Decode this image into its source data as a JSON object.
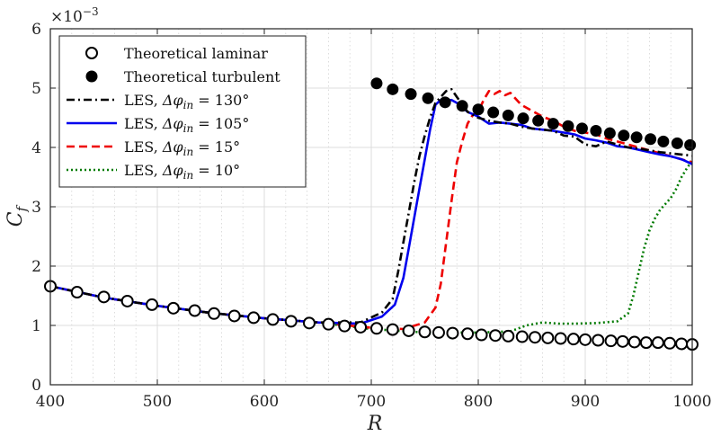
{
  "chart_data": {
    "type": "line",
    "xlabel": "R",
    "ylabel_main": "C",
    "ylabel_sub": "f",
    "xlim": [
      400,
      1000
    ],
    "ylim": [
      0,
      6
    ],
    "y_multiplier": "×10",
    "y_multiplier_exp": "−3",
    "x_ticks": [
      "400",
      "500",
      "600",
      "700",
      "800",
      "900",
      "1000"
    ],
    "y_ticks": [
      "0",
      "1",
      "2",
      "3",
      "4",
      "5",
      "6"
    ],
    "grid": true,
    "minor_grid": true,
    "legend_position": "top-left",
    "series": [
      {
        "name": "Theoretical laminar",
        "style": "open-circle",
        "color": "#000000",
        "x": [
          400,
          425,
          450,
          472,
          495,
          515,
          535,
          553,
          572,
          590,
          608,
          625,
          642,
          660,
          675,
          690,
          705,
          720,
          735,
          750,
          763,
          776,
          790,
          803,
          816,
          828,
          841,
          853,
          865,
          877,
          889,
          900,
          912,
          924,
          935,
          946,
          957,
          968,
          979,
          990,
          1000
        ],
        "y": [
          1.66,
          1.56,
          1.48,
          1.41,
          1.35,
          1.29,
          1.25,
          1.2,
          1.16,
          1.13,
          1.1,
          1.07,
          1.04,
          1.02,
          0.99,
          0.97,
          0.95,
          0.93,
          0.91,
          0.89,
          0.88,
          0.87,
          0.86,
          0.84,
          0.83,
          0.82,
          0.81,
          0.8,
          0.79,
          0.78,
          0.77,
          0.76,
          0.75,
          0.74,
          0.73,
          0.72,
          0.71,
          0.71,
          0.7,
          0.69,
          0.68
        ]
      },
      {
        "name": "Theoretical turbulent",
        "style": "filled-circle",
        "color": "#000000",
        "x": [
          705,
          720,
          737,
          753,
          769,
          785,
          800,
          814,
          828,
          842,
          856,
          870,
          884,
          897,
          910,
          923,
          936,
          948,
          961,
          973,
          986,
          998
        ],
        "y": [
          5.08,
          4.98,
          4.9,
          4.83,
          4.76,
          4.7,
          4.64,
          4.59,
          4.54,
          4.49,
          4.45,
          4.4,
          4.36,
          4.32,
          4.28,
          4.24,
          4.2,
          4.17,
          4.14,
          4.1,
          4.07,
          4.04
        ]
      },
      {
        "name": "LES, Δφin = 130°",
        "legend_prefix": "LES, ",
        "legend_math": "Δφ",
        "legend_sub": "in",
        "legend_suffix": " = 130°",
        "style": "dashdot",
        "color": "#000000",
        "x": [
          400,
          450,
          500,
          550,
          600,
          650,
          690,
          710,
          720,
          725,
          730,
          735,
          740,
          745,
          750,
          755,
          760,
          765,
          770,
          775,
          780,
          790,
          800,
          810,
          820,
          830,
          840,
          850,
          860,
          870,
          880,
          890,
          900,
          910,
          920,
          930,
          940,
          950,
          960,
          970,
          980,
          990,
          1000
        ],
        "y": [
          1.66,
          1.47,
          1.33,
          1.21,
          1.12,
          1.05,
          1.05,
          1.22,
          1.45,
          1.9,
          2.4,
          2.9,
          3.4,
          3.85,
          4.2,
          4.5,
          4.75,
          4.85,
          4.95,
          4.98,
          4.85,
          4.6,
          4.5,
          4.45,
          4.42,
          4.4,
          4.35,
          4.32,
          4.3,
          4.28,
          4.2,
          4.18,
          4.05,
          4.02,
          4.1,
          4.05,
          4.0,
          3.98,
          3.95,
          3.92,
          3.9,
          3.88,
          3.86
        ]
      },
      {
        "name": "LES, Δφin = 105°",
        "legend_prefix": "LES, ",
        "legend_math": "Δφ",
        "legend_sub": "in",
        "legend_suffix": " = 105°",
        "style": "solid",
        "color": "#0000ee",
        "x": [
          400,
          450,
          500,
          550,
          600,
          650,
          690,
          710,
          722,
          730,
          735,
          740,
          745,
          750,
          755,
          760,
          765,
          770,
          775,
          780,
          790,
          800,
          810,
          820,
          830,
          840,
          850,
          860,
          870,
          880,
          890,
          900,
          910,
          920,
          930,
          940,
          950,
          960,
          970,
          980,
          990,
          1000
        ],
        "y": [
          1.66,
          1.47,
          1.33,
          1.21,
          1.12,
          1.05,
          1.03,
          1.15,
          1.35,
          1.8,
          2.3,
          2.8,
          3.3,
          3.8,
          4.3,
          4.72,
          4.8,
          4.78,
          4.8,
          4.75,
          4.6,
          4.52,
          4.4,
          4.42,
          4.4,
          4.38,
          4.32,
          4.3,
          4.28,
          4.25,
          4.22,
          4.15,
          4.12,
          4.08,
          4.02,
          4.0,
          3.96,
          3.92,
          3.88,
          3.85,
          3.8,
          3.72
        ]
      },
      {
        "name": "LES, Δφin = 15°",
        "legend_prefix": "LES, ",
        "legend_math": "Δφ",
        "legend_sub": "in",
        "legend_suffix": " = 15°",
        "style": "dashed",
        "color": "#ee0000",
        "x": [
          400,
          450,
          500,
          550,
          600,
          650,
          700,
          730,
          750,
          760,
          765,
          770,
          775,
          780,
          785,
          790,
          795,
          800,
          805,
          810,
          815,
          820,
          825,
          830,
          840,
          850,
          860,
          870,
          880,
          890,
          900,
          910,
          920,
          930,
          940,
          950,
          960,
          970,
          980,
          990,
          1000
        ],
        "y": [
          1.66,
          1.47,
          1.33,
          1.21,
          1.12,
          1.05,
          0.96,
          0.94,
          1.05,
          1.3,
          1.7,
          2.4,
          3.1,
          3.75,
          4.1,
          4.4,
          4.55,
          4.6,
          4.8,
          4.95,
          4.9,
          4.95,
          4.88,
          4.92,
          4.72,
          4.62,
          4.52,
          4.45,
          4.35,
          4.28,
          4.25,
          4.22,
          4.15,
          4.1,
          4.05,
          4.0,
          3.95,
          3.9,
          3.85,
          3.8,
          3.75
        ]
      },
      {
        "name": "LES, Δφin = 10°",
        "legend_prefix": "LES, ",
        "legend_math": "Δφ",
        "legend_sub": "in",
        "legend_suffix": " = 10°",
        "style": "dotted",
        "color": "#007a00",
        "x": [
          400,
          450,
          500,
          550,
          600,
          650,
          700,
          750,
          800,
          830,
          845,
          860,
          875,
          890,
          910,
          930,
          940,
          945,
          950,
          955,
          960,
          965,
          970,
          975,
          980,
          985,
          990,
          995,
          1000
        ],
        "y": [
          1.66,
          1.47,
          1.33,
          1.21,
          1.12,
          1.05,
          0.94,
          0.88,
          0.88,
          0.9,
          1.0,
          1.05,
          1.03,
          1.03,
          1.04,
          1.07,
          1.2,
          1.5,
          1.9,
          2.3,
          2.6,
          2.8,
          2.95,
          3.05,
          3.15,
          3.3,
          3.5,
          3.65,
          3.78
        ]
      }
    ]
  }
}
